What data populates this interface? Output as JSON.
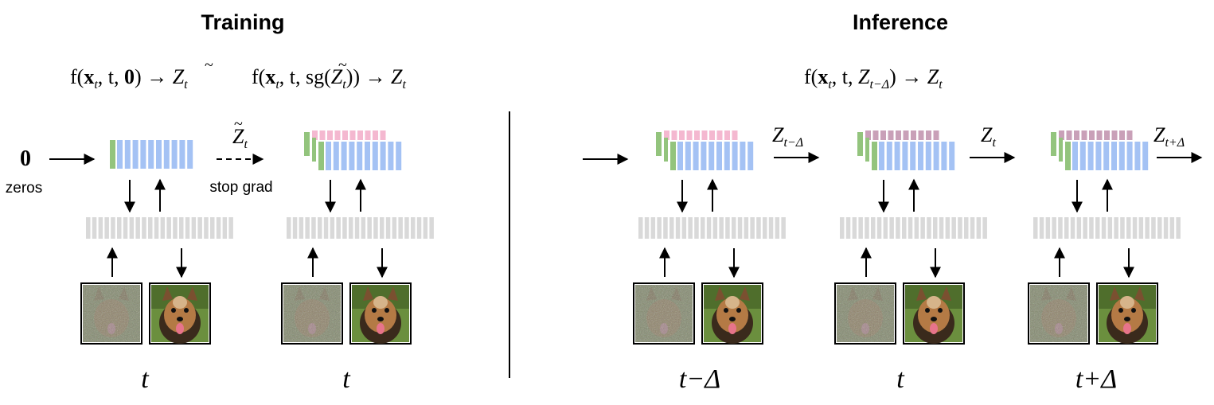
{
  "titles": {
    "training": "Training",
    "inference": "Inference"
  },
  "training": {
    "eq1": {
      "f": "f(",
      "x": "x",
      "sub_t": "t",
      "mid": ", t, ",
      "zero": "0",
      "close": ") → ",
      "Z": "Z",
      "sub": "t"
    },
    "eq2": {
      "f": "f(",
      "x": "x",
      "sub_t": "t",
      "mid": ", t, ",
      "sg": "sg(",
      "Z": "Z",
      "sub": "t",
      "close": ")) → ",
      "Z2": "Z",
      "sub2": "t"
    },
    "input_zero": "0",
    "input_zero_label": "zeros",
    "transfer": {
      "Z": "Z",
      "sub": "t"
    },
    "stop_grad_label": "stop grad",
    "steps": [
      "t",
      "t"
    ]
  },
  "inference": {
    "eq": {
      "f": "f(",
      "x": "x",
      "sub_t": "t",
      "mid": ", t, ",
      "Z": "Z",
      "sub": "t−Δ",
      "close": ") → ",
      "Z2": "Z",
      "sub2": "t"
    },
    "arrows": [
      {
        "Z": "Z",
        "sub": "t−Δ"
      },
      {
        "Z": "Z",
        "sub": "t"
      },
      {
        "Z": "Z",
        "sub": "t+Δ"
      }
    ],
    "steps": [
      "t−Δ",
      "t",
      "t+Δ"
    ]
  },
  "colors": {
    "latent_blue": "#a4c2f4",
    "latent_green": "#93c47d",
    "latent_pink": "#f4b8d0",
    "latent_mauve": "#c9a0b8",
    "interface_gray": "#d9d9d9",
    "arrow": "#000000"
  },
  "icons": {
    "noisy_image": "noisy-dog-image",
    "clean_image": "clean-dog-image"
  }
}
